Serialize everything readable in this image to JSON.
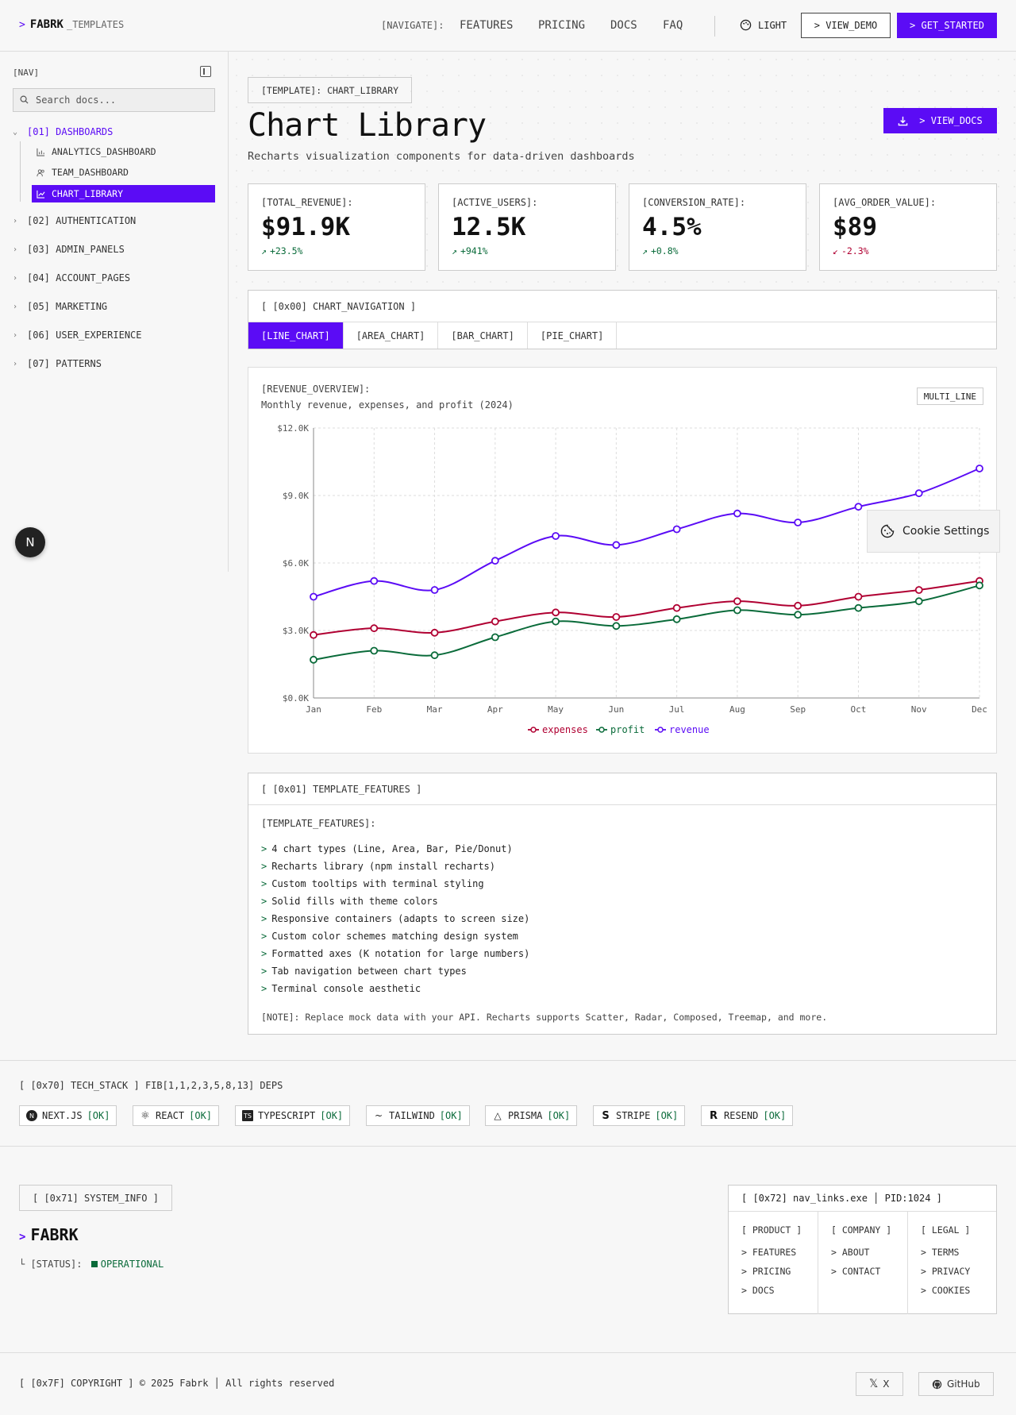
{
  "header": {
    "brand": "FABRK",
    "brand_suffix": "_TEMPLATES",
    "nav_label": "[NAVIGATE]:",
    "links": [
      "FEATURES",
      "PRICING",
      "DOCS",
      "FAQ"
    ],
    "theme_label": "LIGHT",
    "view_demo": "> VIEW_DEMO",
    "get_started": "> GET_STARTED"
  },
  "sidebar": {
    "label": "[NAV]",
    "search_placeholder": "Search docs...",
    "sections": [
      {
        "label": "[01] DASHBOARDS",
        "open": true
      },
      {
        "label": "[02] AUTHENTICATION"
      },
      {
        "label": "[03] ADMIN_PANELS"
      },
      {
        "label": "[04] ACCOUNT_PAGES"
      },
      {
        "label": "[05] MARKETING"
      },
      {
        "label": "[06] USER_EXPERIENCE"
      },
      {
        "label": "[07] PATTERNS"
      }
    ],
    "subitems": [
      "ANALYTICS_DASHBOARD",
      "TEAM_DASHBOARD",
      "CHART_LIBRARY"
    ],
    "active_subitem": "CHART_LIBRARY"
  },
  "page": {
    "tag": "[TEMPLATE]: CHART_LIBRARY",
    "title": "Chart Library",
    "subtitle": "Recharts visualization components for data-driven dashboards",
    "view_docs": "> VIEW_DOCS"
  },
  "stats": [
    {
      "label": "[TOTAL_REVENUE]:",
      "value": "$91.9K",
      "delta": "+23.5%",
      "trend": "up"
    },
    {
      "label": "[ACTIVE_USERS]:",
      "value": "12.5K",
      "delta": "+941%",
      "trend": "up"
    },
    {
      "label": "[CONVERSION_RATE]:",
      "value": "4.5%",
      "delta": "+0.8%",
      "trend": "up"
    },
    {
      "label": "[AVG_ORDER_VALUE]:",
      "value": "$89",
      "delta": "-2.3%",
      "trend": "down"
    }
  ],
  "chart_nav": {
    "header": "[ [0x00] CHART_NAVIGATION ]",
    "tabs": [
      "[LINE_CHART]",
      "[AREA_CHART]",
      "[BAR_CHART]",
      "[PIE_CHART]"
    ],
    "active": 0
  },
  "chart_card": {
    "title": "[REVENUE_OVERVIEW]:",
    "subtitle": "Monthly revenue, expenses, and profit (2024)",
    "badge": "MULTI_LINE"
  },
  "chart_data": {
    "type": "line",
    "x": [
      "Jan",
      "Feb",
      "Mar",
      "Apr",
      "May",
      "Jun",
      "Jul",
      "Aug",
      "Sep",
      "Oct",
      "Nov",
      "Dec"
    ],
    "ylim": [
      0,
      12000
    ],
    "yticks": [
      "$0.0K",
      "$3.0K",
      "$6.0K",
      "$9.0K",
      "$12.0K"
    ],
    "grid": true,
    "legend_position": "bottom",
    "series": [
      {
        "name": "expenses",
        "color": "#b00032",
        "values": [
          2800,
          3100,
          2900,
          3400,
          3800,
          3600,
          4000,
          4300,
          4100,
          4500,
          4800,
          5200
        ]
      },
      {
        "name": "profit",
        "color": "#0a6b3a",
        "values": [
          1700,
          2100,
          1900,
          2700,
          3400,
          3200,
          3500,
          3900,
          3700,
          4000,
          4300,
          5000
        ]
      },
      {
        "name": "revenue",
        "color": "#5b0cf5",
        "values": [
          4500,
          5200,
          4800,
          6100,
          7200,
          6800,
          7500,
          8200,
          7800,
          8500,
          9100,
          10200
        ]
      }
    ]
  },
  "cookie": "Cookie Settings",
  "features": {
    "header": "[ [0x01] TEMPLATE_FEATURES ]",
    "label": "[TEMPLATE_FEATURES]:",
    "items": [
      "4 chart types (Line, Area, Bar, Pie/Donut)",
      "Recharts library (npm install recharts)",
      "Custom tooltips with terminal styling",
      "Solid fills with theme colors",
      "Responsive containers (adapts to screen size)",
      "Custom color schemes matching design system",
      "Formatted axes (K notation for large numbers)",
      "Tab navigation between chart types",
      "Terminal console aesthetic"
    ],
    "note": "[NOTE]: Replace mock data with your API. Recharts supports Scatter, Radar, Composed, Treemap, and more."
  },
  "tech": {
    "label": "[ [0x70] TECH_STACK ] FIB[1,1,2,3,5,8,13] DEPS",
    "items": [
      {
        "name": "NEXT.JS",
        "status": "[OK]"
      },
      {
        "name": "REACT",
        "status": "[OK]"
      },
      {
        "name": "TYPESCRIPT",
        "status": "[OK]"
      },
      {
        "name": "TAILWIND",
        "status": "[OK]"
      },
      {
        "name": "PRISMA",
        "status": "[OK]"
      },
      {
        "name": "STRIPE",
        "status": "[OK]"
      },
      {
        "name": "RESEND",
        "status": "[OK]"
      }
    ]
  },
  "footer": {
    "sys_label": "[ [0x71] SYSTEM_INFO ]",
    "brand": "FABRK",
    "status_label": "[STATUS]:",
    "status_value": "OPERATIONAL",
    "nav_header": "[ [0x72] nav_links.exe │ PID:1024 ]",
    "cols": [
      {
        "title": "[ PRODUCT ]",
        "items": [
          "> FEATURES",
          "> PRICING",
          "> DOCS"
        ]
      },
      {
        "title": "[ COMPANY ]",
        "items": [
          "> ABOUT",
          "> CONTACT"
        ]
      },
      {
        "title": "[ LEGAL ]",
        "items": [
          "> TERMS",
          "> PRIVACY",
          "> COOKIES"
        ]
      }
    ],
    "copyright": "[ [0x7F] COPYRIGHT ] © 2025 Fabrk │ All rights reserved",
    "x_label": "X",
    "github_label": "GitHub"
  },
  "colors": {
    "accent": "#5b0cf5",
    "success": "#0a6b3a",
    "danger": "#b00032"
  }
}
